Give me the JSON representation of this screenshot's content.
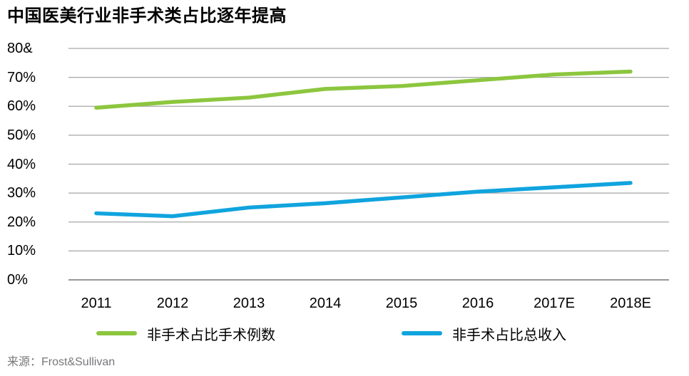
{
  "source": {
    "text": "来源：Frost&Sullivan"
  },
  "colors": {
    "series_green": "#8CC63E",
    "series_blue": "#10A4DE",
    "gridline": "#A6A6A6",
    "baseline": "#989898",
    "axis_text": "#000000",
    "source_text": "#76777A"
  },
  "chart_data": {
    "type": "line",
    "title": "中国医美行业非手术类占比逐年提高",
    "categories": [
      "2011",
      "2012",
      "2013",
      "2014",
      "2015",
      "2016",
      "2017E",
      "2018E"
    ],
    "series": [
      {
        "name": "非手术占比手术例数",
        "color": "#8CC63E",
        "values": [
          59.5,
          61.5,
          63,
          66,
          67,
          69,
          71,
          72
        ]
      },
      {
        "name": "非手术占比总收入",
        "color": "#10A4DE",
        "values": [
          23,
          22,
          25,
          26.5,
          28.5,
          30.5,
          32,
          33.5
        ]
      }
    ],
    "xlabel": "",
    "ylabel": "",
    "ylim": [
      0,
      80
    ],
    "ytick_step": 10,
    "ytick_labels": [
      "0%",
      "10%",
      "20%",
      "30%",
      "40%",
      "50%",
      "60%",
      "70%",
      "80&"
    ],
    "grid": "horizontal-only",
    "legend_position": "bottom"
  }
}
